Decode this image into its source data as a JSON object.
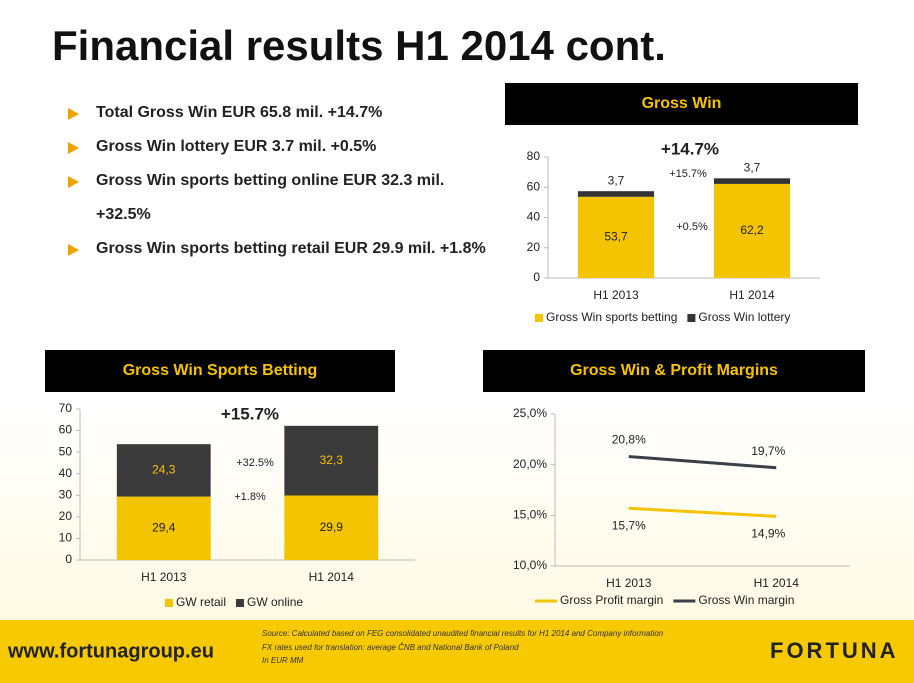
{
  "title": "Financial results H1 2014 cont.",
  "bullets": [
    "Total Gross Win EUR 65.8 mil. +14.7%",
    "Gross Win lottery EUR 3.7 mil. +0.5%",
    "Gross Win sports betting online EUR 32.3 mil. +32.5%",
    "Gross Win sports betting retail EUR 29.9 mil. +1.8%"
  ],
  "chart_data": [
    {
      "type": "stacked-bar",
      "title": "Gross Win",
      "categories": [
        "H1 2013",
        "H1 2014"
      ],
      "series": [
        {
          "name": "Gross Win sports betting",
          "color": "#f5c400",
          "values": [
            53.7,
            62.2
          ],
          "value_labels": [
            "53,7",
            "62,2"
          ]
        },
        {
          "name": "Gross Win lottery",
          "color": "#333333",
          "values": [
            3.7,
            3.7
          ],
          "value_labels": [
            "3,7",
            "3,7"
          ]
        }
      ],
      "ylim": [
        0,
        80
      ],
      "yticks": [
        0,
        20,
        40,
        60,
        80
      ],
      "grid": false,
      "annotations": [
        "+14.7%",
        "+15.7%",
        "+0.5%"
      ]
    },
    {
      "type": "stacked-bar",
      "title": "Gross Win Sports Betting",
      "categories": [
        "H1 2013",
        "H1 2014"
      ],
      "series": [
        {
          "name": "GW retail",
          "color": "#f5c400",
          "values": [
            29.4,
            29.9
          ],
          "value_labels": [
            "29,4",
            "29,9"
          ]
        },
        {
          "name": "GW online",
          "color": "#3a3a3a",
          "values": [
            24.3,
            32.3
          ],
          "value_labels": [
            "24,3",
            "32,3"
          ]
        }
      ],
      "ylim": [
        0,
        70
      ],
      "yticks": [
        0,
        10,
        20,
        30,
        40,
        50,
        60,
        70
      ],
      "grid": false,
      "annotations": [
        "+15.7%",
        "+32.5%",
        "+1.8%"
      ]
    },
    {
      "type": "line",
      "title": "Gross Win & Profit Margins",
      "categories": [
        "H1 2013",
        "H1 2014"
      ],
      "series": [
        {
          "name": "Gross Profit margin",
          "color": "#f5c400",
          "values": [
            15.7,
            14.9
          ],
          "value_labels": [
            "15,7%",
            "14,9%"
          ]
        },
        {
          "name": "Gross Win margin",
          "color": "#3a3f4a",
          "values": [
            20.8,
            19.7
          ],
          "value_labels": [
            "20,8%",
            "19,7%"
          ]
        }
      ],
      "ylim": [
        10,
        25
      ],
      "yticks": [
        {
          "value": 10,
          "label": "10,0%"
        },
        {
          "value": 15,
          "label": "15,0%"
        },
        {
          "value": 20,
          "label": "20,0%"
        },
        {
          "value": 25,
          "label": "25,0%"
        }
      ],
      "grid": false
    }
  ],
  "footer": {
    "website": "www.fortunagroup.eu",
    "source": [
      "Source: Calculated based on FEG consolidated unaudited financial results for H1 2014 and Company information",
      "FX rates used for translation: average ČNB and National Bank of Poland",
      "In EUR MM"
    ],
    "logo": "FORTUNA"
  }
}
